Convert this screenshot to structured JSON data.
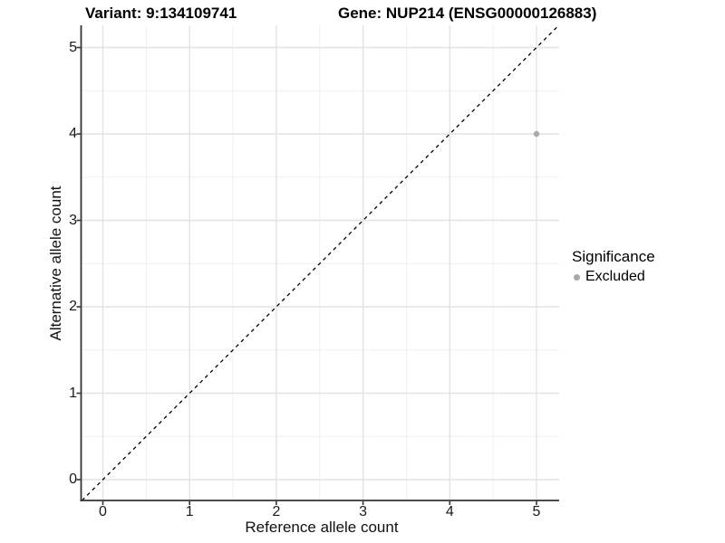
{
  "titles": {
    "variant": "Variant: 9:134109741",
    "gene": "Gene: NUP214 (ENSG00000126883)"
  },
  "chart_data": {
    "type": "scatter",
    "title_left": "Variant: 9:134109741",
    "title_right": "Gene: NUP214 (ENSG00000126883)",
    "xlabel": "Reference allele count",
    "ylabel": "Alternative allele count",
    "x_ticks": [
      0,
      1,
      2,
      3,
      4,
      5
    ],
    "y_ticks": [
      0,
      1,
      2,
      3,
      4,
      5
    ],
    "xlim": [
      -0.25,
      5.26
    ],
    "ylim": [
      -0.25,
      5.26
    ],
    "grid": "major and minor gridlines on, white panel",
    "identity_line": {
      "style": "dashed",
      "color": "#000000",
      "slope": 1,
      "intercept": 0
    },
    "points": [
      {
        "x": 5,
        "y": 4,
        "series": "Excluded"
      }
    ],
    "legend": {
      "title": "Significance",
      "position": "right",
      "items": [
        {
          "label": "Excluded",
          "color": "#a9a9a9",
          "marker": "circle"
        }
      ]
    },
    "colors": {
      "point_excluded": "#a9a9a9",
      "grid_major": "#e3e3e3",
      "grid_minor": "#efefef",
      "axis_line": "#333333"
    }
  }
}
